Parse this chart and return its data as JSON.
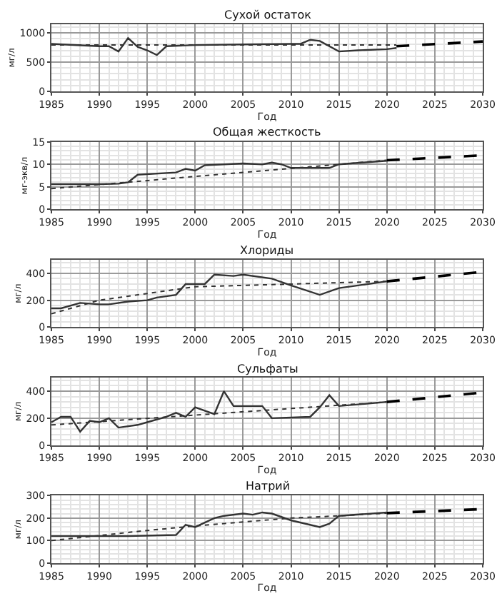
{
  "chart_data": [
    {
      "type": "line",
      "title": "Сухой остаток",
      "xlabel": "Год",
      "ylabel": "мг/л",
      "xlim": [
        1985,
        2030
      ],
      "xticks": [
        1985,
        1990,
        1995,
        2000,
        2005,
        2010,
        2015,
        2020,
        2025,
        2030
      ],
      "ylim": [
        0,
        1150
      ],
      "yticks": [
        0,
        500,
        1000
      ],
      "grid": true,
      "series": [
        {
          "color": "#333333",
          "line_style": "solid",
          "x": [
            1985,
            1990,
            1991,
            1992,
            1993,
            1994,
            1995,
            1996,
            1997,
            2000,
            2005,
            2010,
            2011,
            2012,
            2013,
            2015,
            2017,
            2020,
            2021
          ],
          "values": [
            810,
            770,
            770,
            680,
            910,
            760,
            700,
            620,
            770,
            790,
            800,
            810,
            810,
            880,
            860,
            680,
            700,
            720,
            740
          ]
        },
        {
          "color": "#333333",
          "line_style": "dotted",
          "x": [
            1985,
            2021
          ],
          "values": [
            790,
            790
          ]
        },
        {
          "color": "#000000",
          "line_style": "dashed",
          "x": [
            2021,
            2030
          ],
          "values": [
            770,
            850
          ]
        }
      ]
    },
    {
      "type": "line",
      "title": "Общая жесткость",
      "xlabel": "Год",
      "ylabel": "мг-экв/л",
      "xlim": [
        1985,
        2030
      ],
      "xticks": [
        1985,
        1990,
        1995,
        2000,
        2005,
        2010,
        2015,
        2020,
        2025,
        2030
      ],
      "ylim": [
        0,
        15
      ],
      "yticks": [
        0,
        5,
        10,
        15
      ],
      "grid": true,
      "series": [
        {
          "color": "#333333",
          "line_style": "solid",
          "x": [
            1985,
            1990,
            1992,
            1993,
            1994,
            1998,
            1999,
            2000,
            2001,
            2005,
            2007,
            2008,
            2009,
            2010,
            2014,
            2015,
            2020
          ],
          "values": [
            5.6,
            5.6,
            5.7,
            6.0,
            7.7,
            8.2,
            9.0,
            8.6,
            9.8,
            10.2,
            10.0,
            10.4,
            10.0,
            9.2,
            9.2,
            10.0,
            10.8
          ]
        },
        {
          "color": "#333333",
          "line_style": "dotted",
          "x": [
            1985,
            2020
          ],
          "values": [
            4.6,
            10.9
          ]
        },
        {
          "color": "#000000",
          "line_style": "dashed",
          "x": [
            2020,
            2030
          ],
          "values": [
            10.9,
            12.0
          ]
        }
      ]
    },
    {
      "type": "line",
      "title": "Хлориды",
      "xlabel": "Год",
      "ylabel": "мг/л",
      "xlim": [
        1985,
        2030
      ],
      "xticks": [
        1985,
        1990,
        1995,
        2000,
        2005,
        2010,
        2015,
        2020,
        2025,
        2030
      ],
      "ylim": [
        0,
        500
      ],
      "yticks": [
        0,
        200,
        400
      ],
      "grid": true,
      "series": [
        {
          "color": "#333333",
          "line_style": "solid",
          "x": [
            1985,
            1986,
            1988,
            1990,
            1991,
            1993,
            1995,
            1996,
            1998,
            1999,
            2001,
            2002,
            2004,
            2005,
            2008,
            2010,
            2013,
            2015,
            2017,
            2020
          ],
          "values": [
            140,
            140,
            180,
            170,
            170,
            190,
            200,
            220,
            240,
            320,
            320,
            390,
            380,
            390,
            360,
            310,
            240,
            290,
            310,
            340
          ]
        },
        {
          "color": "#333333",
          "line_style": "dotted",
          "x": [
            1985,
            1990,
            1995,
            2000,
            2005,
            2010,
            2015,
            2020
          ],
          "values": [
            100,
            200,
            250,
            300,
            310,
            320,
            330,
            340
          ]
        },
        {
          "color": "#000000",
          "line_style": "dashed",
          "x": [
            2020,
            2030
          ],
          "values": [
            340,
            410
          ]
        }
      ]
    },
    {
      "type": "line",
      "title": "Сульфаты",
      "xlabel": "Год",
      "ylabel": "мг/л",
      "xlim": [
        1985,
        2030
      ],
      "xticks": [
        1985,
        1990,
        1995,
        2000,
        2005,
        2010,
        2015,
        2020,
        2025,
        2030
      ],
      "ylim": [
        0,
        500
      ],
      "yticks": [
        0,
        200,
        400
      ],
      "grid": true,
      "series": [
        {
          "color": "#333333",
          "line_style": "solid",
          "x": [
            1985,
            1986,
            1987,
            1988,
            1989,
            1990,
            1991,
            1992,
            1994,
            1995,
            1997,
            1998,
            1999,
            2000,
            2002,
            2003,
            2004,
            2007,
            2008,
            2012,
            2013,
            2014,
            2015,
            2020
          ],
          "values": [
            170,
            210,
            210,
            100,
            180,
            170,
            200,
            130,
            150,
            170,
            210,
            240,
            210,
            280,
            230,
            400,
            290,
            290,
            200,
            210,
            280,
            370,
            290,
            320
          ]
        },
        {
          "color": "#333333",
          "line_style": "dotted",
          "x": [
            1985,
            2020
          ],
          "values": [
            150,
            320
          ]
        },
        {
          "color": "#000000",
          "line_style": "dashed",
          "x": [
            2020,
            2030
          ],
          "values": [
            320,
            390
          ]
        }
      ]
    },
    {
      "type": "line",
      "title": "Натрий",
      "xlabel": "Год",
      "ylabel": "мг/л",
      "xlim": [
        1985,
        2030
      ],
      "xticks": [
        1985,
        1990,
        1995,
        2000,
        2005,
        2010,
        2015,
        2020,
        2025,
        2030
      ],
      "ylim": [
        0,
        300
      ],
      "yticks": [
        0,
        100,
        200,
        300
      ],
      "grid": true,
      "series": [
        {
          "color": "#333333",
          "line_style": "solid",
          "x": [
            1985,
            1990,
            1993,
            1998,
            1999,
            2000,
            2002,
            2003,
            2005,
            2006,
            2007,
            2008,
            2010,
            2013,
            2014,
            2015,
            2020
          ],
          "values": [
            120,
            120,
            120,
            125,
            170,
            160,
            200,
            210,
            220,
            215,
            225,
            220,
            190,
            160,
            175,
            210,
            225
          ]
        },
        {
          "color": "#333333",
          "line_style": "dotted",
          "x": [
            1985,
            1995,
            2000,
            2010,
            2015,
            2020
          ],
          "values": [
            100,
            145,
            165,
            200,
            210,
            222
          ]
        },
        {
          "color": "#000000",
          "line_style": "dashed",
          "x": [
            2020,
            2030
          ],
          "values": [
            222,
            240
          ]
        }
      ]
    }
  ]
}
